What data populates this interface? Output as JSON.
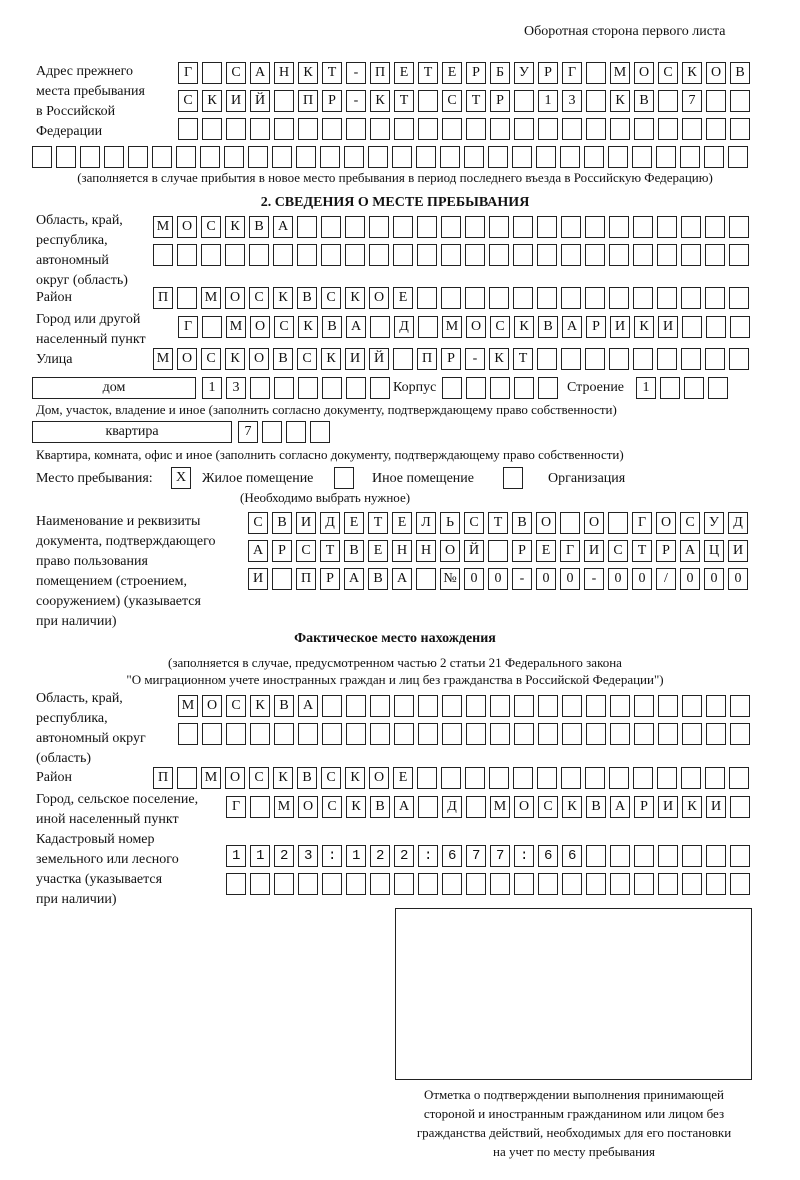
{
  "header": "Оборотная сторона первого листа",
  "prev_address": {
    "label": [
      "Адрес прежнего",
      "места пребывания",
      "в Российской",
      "Федерации"
    ],
    "rows": [
      "Г САНКТ-ПЕТЕРБУРГ МОСКОВ",
      "СКИЙ ПР-КТ СТР 13 КВ 7",
      "",
      ""
    ],
    "note": "(заполняется в случае прибытия в новое место пребывания в период последнего въезда в Российскую Федерацию)"
  },
  "section2": {
    "title": "2. СВЕДЕНИЯ О МЕСТЕ ПРЕБЫВАНИЯ",
    "region_label": [
      "Область, край,",
      "республика,",
      "автономный",
      "округ (область)"
    ],
    "region": [
      "МОСКВА",
      ""
    ],
    "district_label": "Район",
    "district": "П МОСКВСКОЕ",
    "city_label": [
      "Город или другой",
      "населенный пункт"
    ],
    "city": "Г МОСКВА Д МОСКВАРИКИ",
    "street_label": "Улица",
    "street": "МОСКОВСКИЙ ПР-КТ",
    "house_type": "дом",
    "house": "13",
    "korpus_label": "Корпус",
    "korpus": "",
    "building_label": "Строение",
    "building": "1",
    "house_note": "Дом, участок, владение и иное (заполнить согласно документу, подтверждающему право собственности)",
    "flat_type": "квартира",
    "flat": "7",
    "flat_note": "Квартира, комната, офис и иное (заполнить согласно документу, подтверждающему право собственности)",
    "place_label": "Место пребывания:",
    "options": [
      {
        "mark": "X",
        "label": "Жилое помещение"
      },
      {
        "mark": "",
        "label": "Иное помещение"
      },
      {
        "mark": "",
        "label": "Организация"
      }
    ],
    "choose_note": "(Необходимо выбрать нужное)",
    "doc_label": [
      "Наименование и реквизиты",
      "документа, подтверждающего",
      "право пользования",
      "помещением (строением,",
      "сооружением) (указывается",
      "при наличии)"
    ],
    "doc": [
      "СВИДЕТЕЛЬСТВО О ГОСУД",
      "АРСТВЕННОЙ РЕГИСТРАЦИ",
      "И ПРАВА №00-00-00/000"
    ]
  },
  "actual": {
    "title": "Фактическое место нахождения",
    "note": [
      "(заполняется в случае, предусмотренном частью 2 статьи 21 Федерального закона",
      "\"О миграционном учете иностранных граждан и лиц без гражданства в Российской Федерации\")"
    ],
    "region_label": [
      "Область, край,",
      "республика,",
      "автономный округ",
      "(область)"
    ],
    "region": [
      "МОСКВА",
      ""
    ],
    "district_label": "Район",
    "district": "П МОСКВСКОЕ",
    "city_label": [
      "Город, сельское поселение,",
      "иной населенный пункт"
    ],
    "city": "Г МОСКВА Д МОСКВАРИКИ",
    "cadastral_label": [
      "Кадастровый номер",
      "земельного или лесного",
      "участка (указывается",
      "при наличии)"
    ],
    "cadastral": [
      "1123:122:677:66",
      ""
    ]
  },
  "stamp_caption": [
    "Отметка о подтверждении выполнения принимающей",
    "стороной и иностранным гражданином или лицом без",
    "гражданства действий, необходимых для его постановки",
    "на учет по месту пребывания"
  ]
}
